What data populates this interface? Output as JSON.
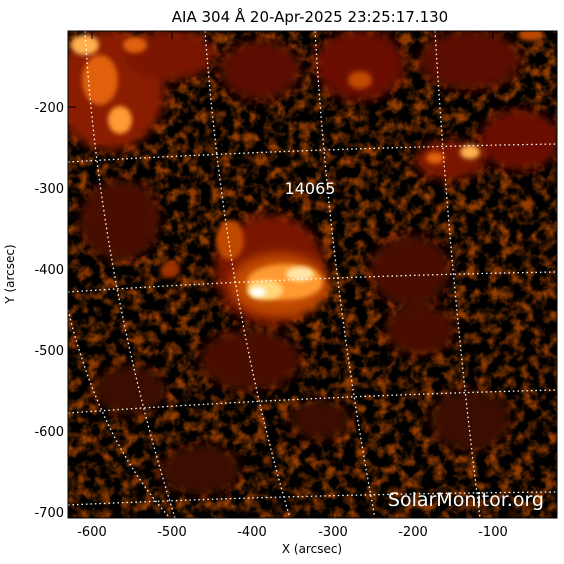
{
  "title": "AIA 304 Å 20-Apr-2025 23:25:17.130",
  "x_axis": {
    "label": "X (arcsec)",
    "ticks": [
      "-600",
      "-500",
      "-400",
      "-300",
      "-200",
      "-100"
    ]
  },
  "y_axis": {
    "label": "Y (arcsec)",
    "ticks": [
      "-200",
      "-300",
      "-400",
      "-500",
      "-600",
      "-700"
    ]
  },
  "region_label": "14065",
  "watermark": "SolarMonitor.org",
  "colors": {
    "background": "#000000",
    "dim": "#3a0500",
    "mid": "#8a1a00",
    "bright": "#e0600a",
    "hot": "#ffd77a",
    "core": "#ffffff",
    "grid": "#ffffff"
  }
}
